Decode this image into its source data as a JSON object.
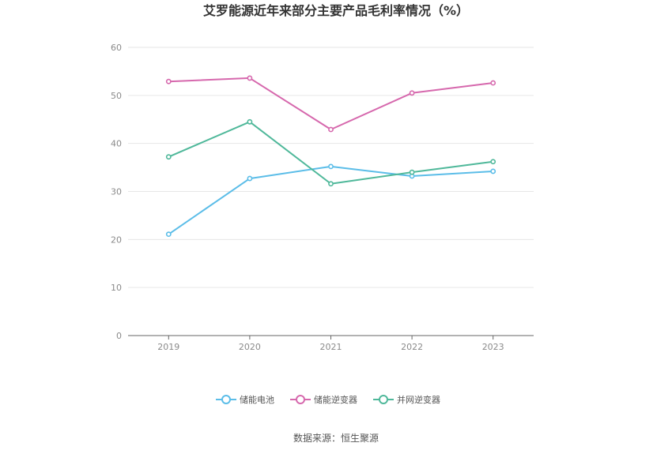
{
  "chart_data": {
    "type": "line",
    "title": "艾罗能源近年来部分主要产品毛利率情况（%）",
    "x": [
      "2019",
      "2020",
      "2021",
      "2022",
      "2023"
    ],
    "ylim": [
      0,
      60
    ],
    "yticks": [
      0,
      10,
      20,
      30,
      40,
      50,
      60
    ],
    "grid": true,
    "legend_position": "bottom",
    "series": [
      {
        "name": "储能电池",
        "color": "#5bbde8",
        "values": [
          21.1,
          32.7,
          35.2,
          33.2,
          34.2
        ]
      },
      {
        "name": "储能逆变器",
        "color": "#d668ad",
        "values": [
          52.9,
          53.6,
          42.9,
          50.5,
          52.6
        ]
      },
      {
        "name": "并网逆变器",
        "color": "#4fb89a",
        "values": [
          37.2,
          44.5,
          31.6,
          34.0,
          36.2
        ]
      }
    ],
    "source": "数据来源：恒生聚源"
  }
}
